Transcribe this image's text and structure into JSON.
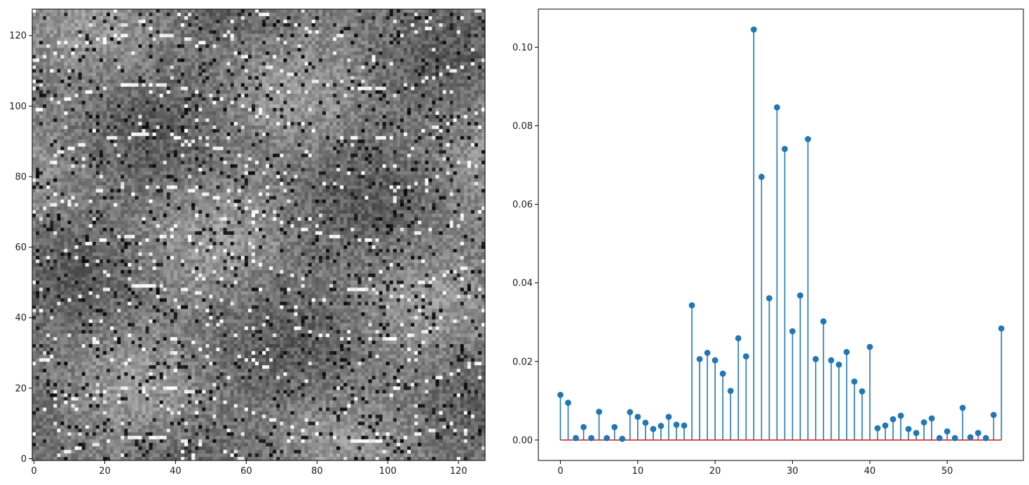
{
  "chart_data": [
    {
      "type": "heatmap",
      "description_colormap": "gray",
      "xlim": [
        -0.5,
        127.5
      ],
      "ylim": [
        127.5,
        -0.5
      ],
      "xticks": [
        0,
        20,
        40,
        60,
        80,
        100,
        120
      ],
      "yticks": [
        0,
        20,
        40,
        60,
        80,
        100,
        120
      ],
      "xtick_labels": [
        "0",
        "20",
        "40",
        "60",
        "80",
        "100",
        "120"
      ],
      "ytick_labels": [
        "0",
        "20",
        "40",
        "60",
        "80",
        "100",
        "120"
      ],
      "title": "",
      "xlabel": "",
      "ylabel": ""
    },
    {
      "type": "stem",
      "x": [
        0,
        1,
        2,
        3,
        4,
        5,
        6,
        7,
        8,
        9,
        10,
        11,
        12,
        13,
        14,
        15,
        16,
        17,
        18,
        19,
        20,
        21,
        22,
        23,
        24,
        25,
        26,
        27,
        28,
        29,
        30,
        31,
        32,
        33,
        34,
        35,
        36,
        37,
        38,
        39,
        40,
        41,
        42,
        43,
        44,
        45,
        46,
        47,
        48,
        49,
        50,
        51,
        52,
        53,
        54,
        55,
        56,
        57
      ],
      "values": [
        0.0115,
        0.0095,
        0.0005,
        0.0033,
        0.0005,
        0.0072,
        0.0005,
        0.0033,
        0.0003,
        0.0071,
        0.0059,
        0.0044,
        0.0028,
        0.0036,
        0.0059,
        0.0039,
        0.0037,
        0.0343,
        0.0206,
        0.0222,
        0.0203,
        0.0169,
        0.0125,
        0.0259,
        0.0213,
        0.1045,
        0.067,
        0.0361,
        0.0847,
        0.0741,
        0.0277,
        0.0368,
        0.0766,
        0.0206,
        0.0302,
        0.0203,
        0.0192,
        0.0224,
        0.0149,
        0.0124,
        0.0237,
        0.003,
        0.0037,
        0.0053,
        0.0062,
        0.0028,
        0.0018,
        0.0045,
        0.0055,
        0.0005,
        0.0022,
        0.0005,
        0.0082,
        0.0007,
        0.0018,
        0.0005,
        0.0064,
        0.0284
      ],
      "xlim": [
        -2.85,
        59.85
      ],
      "ylim": [
        -0.0052,
        0.1097
      ],
      "xticks": [
        0,
        10,
        20,
        30,
        40,
        50
      ],
      "yticks": [
        0.0,
        0.02,
        0.04,
        0.06,
        0.08,
        0.1
      ],
      "xtick_labels": [
        "0",
        "10",
        "20",
        "30",
        "40",
        "50"
      ],
      "ytick_labels": [
        "0.00",
        "0.02",
        "0.04",
        "0.06",
        "0.08",
        "0.10"
      ],
      "baseline": 0,
      "stem_color": "#1f77b4",
      "baseline_color": "#d62728",
      "title": "",
      "xlabel": "",
      "ylabel": ""
    }
  ]
}
